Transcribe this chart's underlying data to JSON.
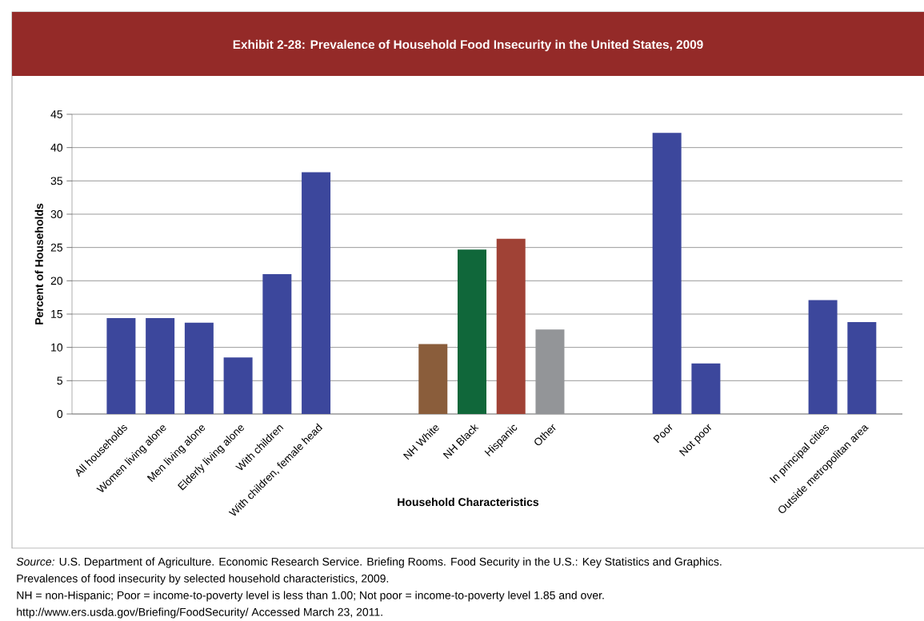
{
  "chart_data": {
    "type": "bar",
    "title": "Exhibit 2-28: Prevalence of Household Food Insecurity in the United States, 2009",
    "xlabel": "Household Characteristics",
    "ylabel": "Percent of Households",
    "categories": [
      "All households",
      "Women living alone",
      "Men living alone",
      "Elderly living alone",
      "With children",
      "With children, female head",
      null,
      null,
      "NH White",
      "NH Black",
      "Hispanic",
      "Other",
      null,
      null,
      "Poor",
      "Not poor",
      null,
      null,
      "In principal cities",
      "Outside metropolitan area"
    ],
    "values": [
      14.4,
      14.4,
      13.7,
      8.5,
      21.0,
      36.3,
      null,
      null,
      10.5,
      24.7,
      26.3,
      12.7,
      null,
      null,
      42.2,
      7.6,
      null,
      null,
      17.1,
      13.8
    ],
    "colors": [
      "#3c479c",
      "#3c479c",
      "#3c479c",
      "#3c479c",
      "#3c479c",
      "#3c479c",
      null,
      null,
      "#8a5d3b",
      "#10673a",
      "#a04236",
      "#939598",
      null,
      null,
      "#3c479c",
      "#3c479c",
      null,
      null,
      "#3c479c",
      "#3c479c"
    ],
    "ylim": [
      0,
      45
    ],
    "yticks": [
      0,
      5,
      10,
      15,
      20,
      25,
      30,
      35,
      40,
      45
    ],
    "grid": "y",
    "annotations": [
      "*Source:* U.S. Department of Agriculture. Economic Research Service. Briefing Rooms. Food Security in the U.S.: Key Statistics and Graphics.",
      "Prevalences of food insecurity by selected household characteristics, 2009.",
      "NH = non-Hispanic; Poor = income-to-poverty level is less than 1.00; Not poor = income-to-poverty level 1.85 and over.",
      "http://www.ers.usda.gov/Briefing/FoodSecurity/  Accessed March 23, 2011."
    ]
  }
}
